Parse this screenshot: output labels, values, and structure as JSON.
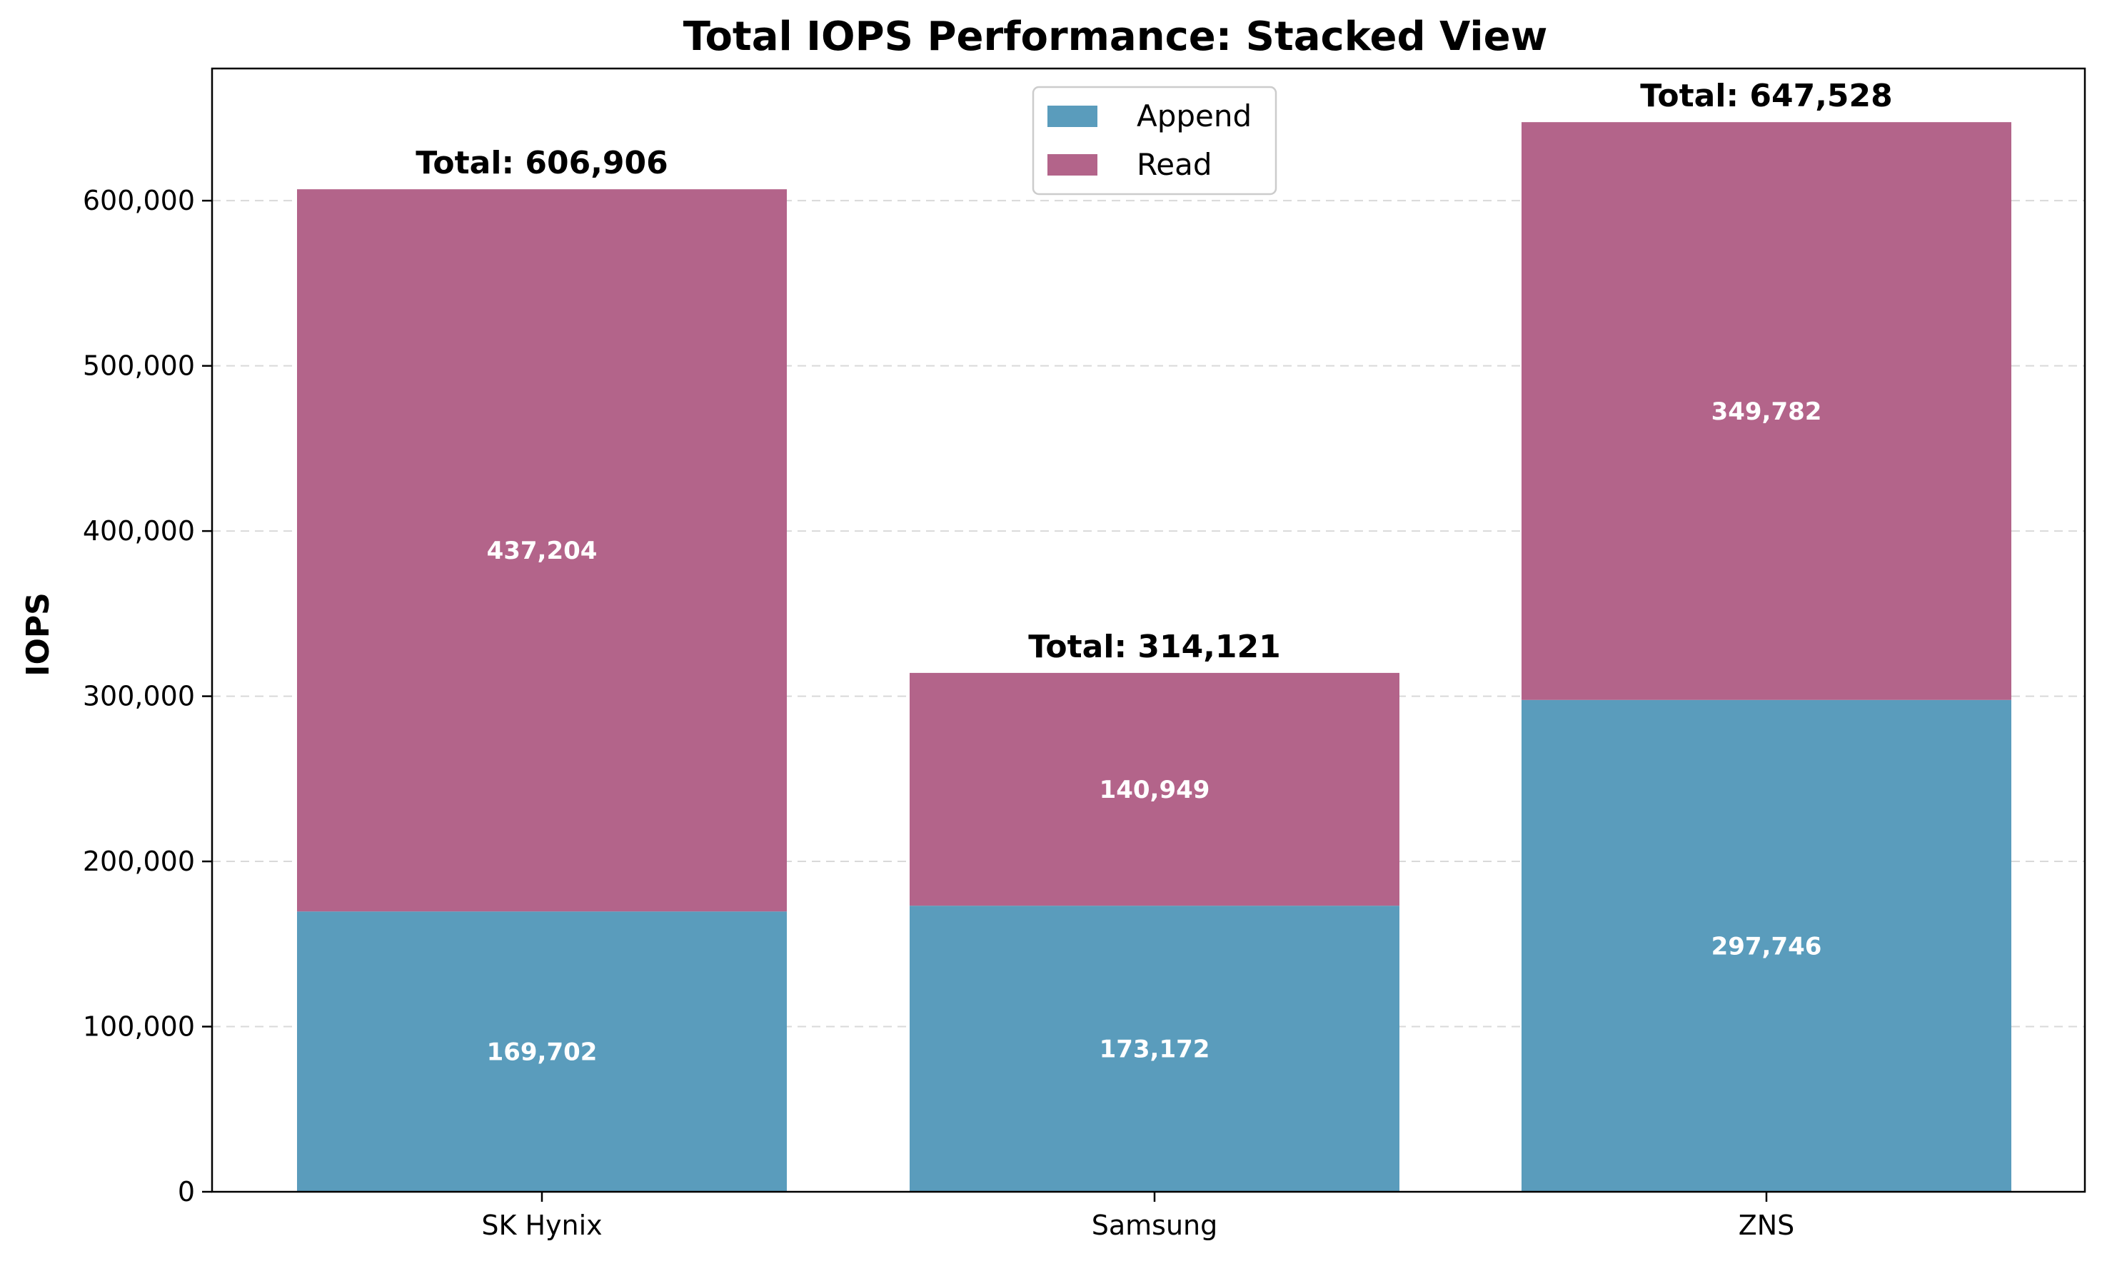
{
  "chart_data": {
    "type": "bar",
    "stacked": true,
    "title": "Total IOPS Performance: Stacked View",
    "xlabel": "",
    "ylabel": "IOPS",
    "categories": [
      "SK Hynix",
      "Samsung",
      "ZNS"
    ],
    "series": [
      {
        "name": "Append",
        "color": "#5a9cbc",
        "values": [
          169702,
          173172,
          297746
        ],
        "value_labels": [
          "169,702",
          "173,172",
          "297,746"
        ]
      },
      {
        "name": "Read",
        "color": "#b3648a",
        "values": [
          437204,
          140949,
          349782
        ],
        "value_labels": [
          "437,204",
          "140,949",
          "349,782"
        ]
      }
    ],
    "totals": [
      606906,
      314121,
      647528
    ],
    "total_labels": [
      "Total: 606,906",
      "Total: 314,121",
      "Total: 647,528"
    ],
    "ylim": [
      0,
      680000
    ],
    "yticks": [
      0,
      100000,
      200000,
      300000,
      400000,
      500000,
      600000
    ],
    "ytick_labels": [
      "0",
      "100,000",
      "200,000",
      "300,000",
      "400,000",
      "500,000",
      "600,000"
    ],
    "grid": "horizontal dashed",
    "legend_position": "top-center"
  }
}
